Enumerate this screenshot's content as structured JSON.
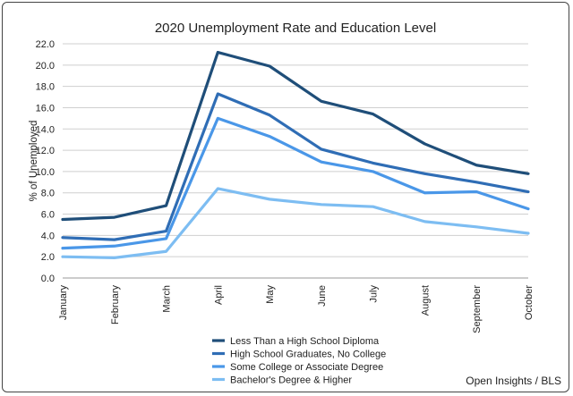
{
  "chart_data": {
    "type": "line",
    "title": "2020 Unemployment Rate and Education Level",
    "ylabel": "% of Unemployed",
    "xlabel": "",
    "categories": [
      "January",
      "February",
      "March",
      "April",
      "May",
      "June",
      "July",
      "August",
      "September",
      "October"
    ],
    "ylim": [
      0,
      22
    ],
    "yticks": [
      "0.0",
      "2.0",
      "4.0",
      "6.0",
      "8.0",
      "10.0",
      "12.0",
      "14.0",
      "16.0",
      "18.0",
      "20.0",
      "22.0"
    ],
    "grid": "horizontal",
    "legend_position": "bottom",
    "series": [
      {
        "name": "Less Than a High School Diploma",
        "color": "#1f4e79",
        "values": [
          5.5,
          5.7,
          6.8,
          21.2,
          19.9,
          16.6,
          15.4,
          12.6,
          10.6,
          9.8
        ]
      },
      {
        "name": "High School Graduates, No College",
        "color": "#2f6db5",
        "values": [
          3.8,
          3.6,
          4.4,
          17.3,
          15.3,
          12.1,
          10.8,
          9.8,
          9.0,
          8.1
        ]
      },
      {
        "name": "Some College or Associate Degree",
        "color": "#4a97e8",
        "values": [
          2.8,
          3.0,
          3.7,
          15.0,
          13.3,
          10.9,
          10.0,
          8.0,
          8.1,
          6.5
        ]
      },
      {
        "name": "Bachelor's Degree & Higher",
        "color": "#7dbdf2",
        "values": [
          2.0,
          1.9,
          2.5,
          8.4,
          7.4,
          6.9,
          6.7,
          5.3,
          4.8,
          4.2
        ]
      }
    ]
  },
  "credit": "Open Insights / BLS"
}
